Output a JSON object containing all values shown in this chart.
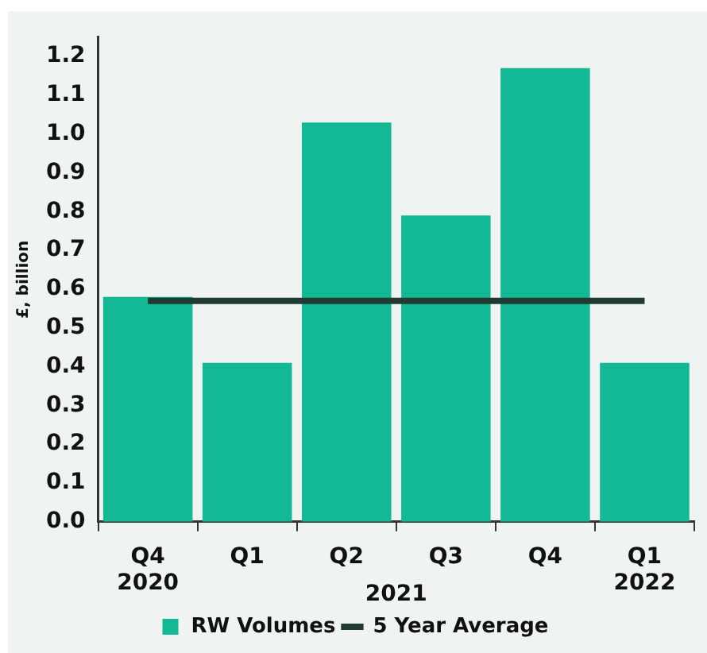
{
  "chart_data": {
    "type": "bar",
    "ylabel": "£, billion",
    "categories": [
      "Q4\n2020",
      "Q1",
      "Q2",
      "Q3",
      "Q4",
      "Q1\n2022"
    ],
    "series": [
      {
        "name": "RW Volumes",
        "color": "#13b994",
        "values": [
          0.58,
          0.41,
          1.03,
          0.79,
          1.17,
          0.41
        ]
      },
      {
        "name": "5 Year Average",
        "type": "line",
        "color": "#213b33",
        "values": [
          0.57,
          0.57,
          0.57,
          0.57,
          0.57,
          0.57
        ]
      }
    ],
    "annotations": [
      "2021"
    ],
    "ylim": [
      0,
      1.25
    ],
    "yticks": [
      {
        "value": 0,
        "label": "0.0"
      },
      0.1,
      0.2,
      0.3,
      0.4,
      0.5,
      0.6,
      0.7,
      0.8,
      0.9,
      {
        "value": 1,
        "label": "1.0"
      },
      1.1,
      1.2
    ],
    "grid": false,
    "legend": "bottom",
    "marker": "none"
  }
}
